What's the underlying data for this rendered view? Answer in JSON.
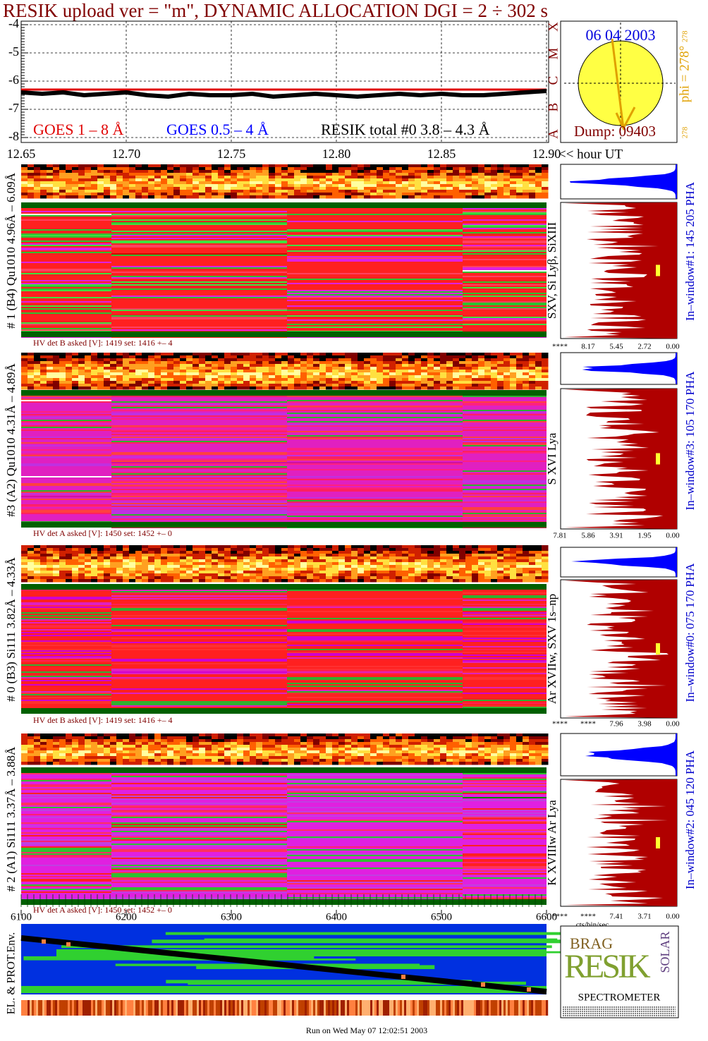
{
  "chart_data": {
    "type": "line",
    "title": "RESIK upload ver = \"m\", DYNAMIC ALLOCATION  DGI =   2 ÷ 302 s",
    "x": [
      12.65,
      12.66,
      12.67,
      12.68,
      12.69,
      12.7,
      12.71,
      12.72,
      12.73,
      12.74,
      12.75,
      12.76,
      12.77,
      12.78,
      12.79,
      12.8,
      12.81,
      12.82,
      12.83,
      12.84,
      12.85,
      12.86,
      12.87,
      12.88,
      12.89,
      12.9
    ],
    "xlim": [
      12.65,
      12.9
    ],
    "xticks": [
      12.65,
      {
        "value": 12.7,
        "label": "12.70"
      },
      12.75,
      {
        "value": 12.8,
        "label": "12.80"
      },
      12.85,
      {
        "value": 12.9,
        "label": "12.90"
      }
    ],
    "xlabel": "<< hour UT",
    "ylim": [
      -8,
      -4
    ],
    "yticks": [
      -4,
      -5,
      -6,
      -7,
      -8
    ],
    "grid": true,
    "series": [
      {
        "name": "GOES 1 – 8 Å",
        "color": "#e00000",
        "values": [
          -6.3,
          -6.3,
          -6.3,
          -6.3,
          -6.3,
          -6.3,
          -6.3,
          -6.3,
          -6.3,
          -6.3,
          -6.3,
          -6.3,
          -6.3,
          -6.3,
          -6.3,
          -6.3,
          -6.3,
          -6.3,
          -6.3,
          -6.3,
          -6.3,
          -6.3,
          -6.3,
          -6.3,
          -6.3,
          -6.3
        ]
      },
      {
        "name": "GOES 0.5 – 4 Å",
        "color": "#0000ff",
        "values": [
          null,
          null,
          null,
          null,
          null,
          null,
          null,
          null,
          null,
          null,
          null,
          null,
          null,
          null,
          null,
          null,
          null,
          null,
          null,
          null,
          null,
          null,
          null,
          null,
          null,
          null
        ]
      },
      {
        "name": "RESIK total #0  3.8 – 4.3 Å",
        "color": "#000000",
        "values": [
          -6.4,
          -6.45,
          -6.4,
          -6.5,
          -6.45,
          -6.4,
          -6.5,
          -6.55,
          -6.45,
          -6.5,
          -6.5,
          -6.45,
          -6.55,
          -6.5,
          -6.45,
          -6.5,
          -6.55,
          -6.5,
          -6.45,
          -6.5,
          -6.45,
          -6.5,
          -6.5,
          -6.45,
          -6.4,
          -6.35
        ]
      }
    ]
  },
  "sun": {
    "date": "06 04 2003",
    "dump": "Dump: 09403",
    "phi": "phi = 278°",
    "phi_small": "278",
    "corner": "278",
    "classes": [
      "X",
      "M",
      "C",
      "B",
      "A"
    ]
  },
  "panels": [
    {
      "label": "# 1 (B4) Qu1010 4.96Å – 6.09Å",
      "lines": "SXV, Si Lyβ, SiXIII",
      "window": "In–window#1:  145 205 PHA",
      "hv": "HV det B asked [V]:  1419 set:  1416 +–    4",
      "pha": [
        "****",
        "8.17",
        "5.45",
        "2.72",
        "0.00"
      ]
    },
    {
      "label": "#3 (A2) Qu1010  4.31Å – 4.89Å",
      "lines": "S XVI Lya",
      "window": "In–window#3:  105 170 PHA",
      "hv": "HV det A asked [V]:  1450 set:  1452 +–    0",
      "pha": [
        "7.81",
        "5.86",
        "3.91",
        "1.95",
        "0.00"
      ]
    },
    {
      "label": "# 0 (B3) Si111  3.82Å – 4.33Å",
      "lines": "Ar XVIIw,  SXV 1s–np",
      "window": "In–window#0:  075 170 PHA",
      "hv": "HV det B asked [V]:  1419 set:  1416 +–    4",
      "pha": [
        "****",
        "****",
        "7.96",
        "3.98",
        "0.00"
      ]
    },
    {
      "label": "# 2 (A1) Si111  3.37Å – 3.88Å",
      "lines": "K XVIIIw  Ar Lya",
      "window": "In–window#2:  045 120 PHA",
      "hv": "HV det A asked [V]:  1450 set:  1452 +–    0",
      "pha": [
        "****",
        "****",
        "7.41",
        "3.71",
        "0.00"
      ]
    }
  ],
  "channel_axis": {
    "xlim": [
      6100,
      6600
    ],
    "xticks": [
      6100,
      6200,
      6300,
      6400,
      6500,
      6600
    ]
  },
  "pha_unit": "cts/bin/sec",
  "env_label": "EL. & PROT.Env.",
  "logo": {
    "top": "BRAG",
    "middle": "RESIK",
    "side": "SOLAR",
    "bottom": "SPECTROMETER"
  },
  "footer": "Run on Wed May 07 12:02:51 2003"
}
